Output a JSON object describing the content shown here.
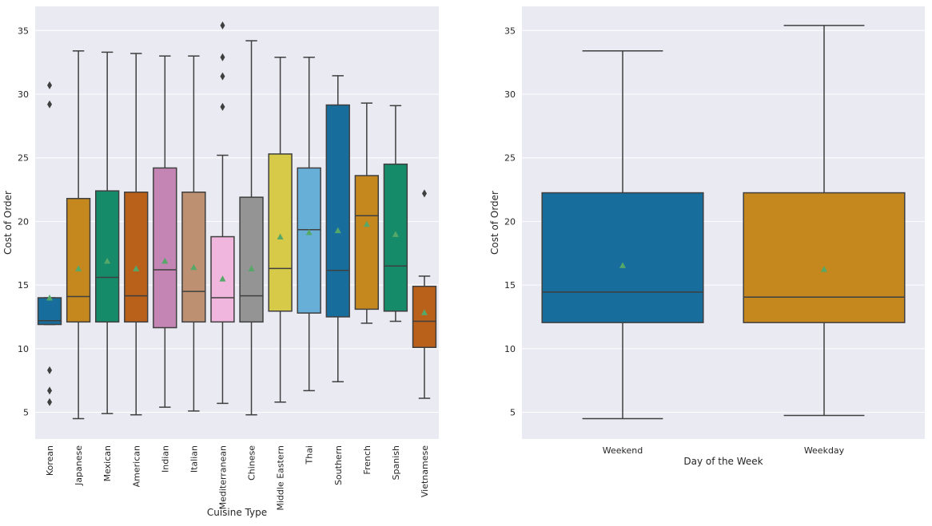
{
  "chart_data": [
    {
      "type": "box",
      "xlabel": "Cuisine Type",
      "ylabel": "Cost of Order",
      "ylim": [
        2.9,
        36.9
      ],
      "yticks": [
        5,
        10,
        15,
        20,
        25,
        30,
        35
      ],
      "grid": true,
      "show_means": true,
      "categories": [
        "Korean",
        "Japanese",
        "Mexican",
        "American",
        "Indian",
        "Italian",
        "Mediterranean",
        "Chinese",
        "Middle Eastern",
        "Thai",
        "Southern",
        "French",
        "Spanish",
        "Vietnamese"
      ],
      "colors": [
        "#176d9c",
        "#c4881f",
        "#158b6a",
        "#b9611b",
        "#c484b4",
        "#bc9070",
        "#f0b6de",
        "#949494",
        "#d6ca48",
        "#68afd8",
        "#176d9c",
        "#c4881f",
        "#158b6a",
        "#b9611b"
      ],
      "boxes": [
        {
          "whislo": 11.9,
          "q1": 11.9,
          "median": 12.2,
          "q3": 14.0,
          "whishi": 14.0,
          "mean": 14.0,
          "fliers": [
            30.7,
            29.2,
            8.3,
            6.7,
            5.8
          ]
        },
        {
          "whislo": 4.5,
          "q1": 12.1,
          "median": 14.1,
          "q3": 21.8,
          "whishi": 33.4,
          "mean": 16.3,
          "fliers": []
        },
        {
          "whislo": 4.9,
          "q1": 12.1,
          "median": 15.6,
          "q3": 22.4,
          "whishi": 33.3,
          "mean": 16.9,
          "fliers": []
        },
        {
          "whislo": 4.8,
          "q1": 12.1,
          "median": 14.15,
          "q3": 22.3,
          "whishi": 33.2,
          "mean": 16.3,
          "fliers": []
        },
        {
          "whislo": 5.4,
          "q1": 11.65,
          "median": 16.2,
          "q3": 24.2,
          "whishi": 33.0,
          "mean": 16.9,
          "fliers": []
        },
        {
          "whislo": 5.1,
          "q1": 12.1,
          "median": 14.5,
          "q3": 22.3,
          "whishi": 33.0,
          "mean": 16.4,
          "fliers": []
        },
        {
          "whislo": 5.7,
          "q1": 12.1,
          "median": 14.0,
          "q3": 18.8,
          "whishi": 25.2,
          "mean": 15.5,
          "fliers": [
            35.4,
            32.9,
            31.4,
            29.0
          ]
        },
        {
          "whislo": 4.8,
          "q1": 12.1,
          "median": 14.15,
          "q3": 21.9,
          "whishi": 34.2,
          "mean": 16.3,
          "fliers": []
        },
        {
          "whislo": 5.8,
          "q1": 12.95,
          "median": 16.3,
          "q3": 25.3,
          "whishi": 32.9,
          "mean": 18.8,
          "fliers": []
        },
        {
          "whislo": 6.7,
          "q1": 12.8,
          "median": 19.35,
          "q3": 24.2,
          "whishi": 32.9,
          "mean": 19.15,
          "fliers": []
        },
        {
          "whislo": 7.4,
          "q1": 12.5,
          "median": 16.15,
          "q3": 29.15,
          "whishi": 31.45,
          "mean": 19.3,
          "fliers": []
        },
        {
          "whislo": 12.0,
          "q1": 13.1,
          "median": 20.45,
          "q3": 23.6,
          "whishi": 29.3,
          "mean": 19.8,
          "fliers": []
        },
        {
          "whislo": 12.15,
          "q1": 12.95,
          "median": 16.5,
          "q3": 24.5,
          "whishi": 29.1,
          "mean": 19.0,
          "fliers": []
        },
        {
          "whislo": 6.1,
          "q1": 10.1,
          "median": 12.15,
          "q3": 14.9,
          "whishi": 15.7,
          "mean": 12.85,
          "fliers": [
            22.2
          ]
        }
      ]
    },
    {
      "type": "box",
      "xlabel": "Day of the Week",
      "ylabel": "Cost of Order",
      "ylim": [
        2.9,
        36.9
      ],
      "yticks": [
        5,
        10,
        15,
        20,
        25,
        30,
        35
      ],
      "grid": true,
      "show_means": true,
      "categories": [
        "Weekend",
        "Weekday"
      ],
      "colors": [
        "#176d9c",
        "#c4881f"
      ],
      "boxes": [
        {
          "whislo": 4.5,
          "q1": 12.05,
          "median": 14.45,
          "q3": 22.25,
          "whishi": 33.4,
          "mean": 16.55,
          "fliers": []
        },
        {
          "whislo": 4.75,
          "q1": 12.05,
          "median": 14.05,
          "q3": 22.25,
          "whishi": 35.4,
          "mean": 16.25,
          "fliers": []
        }
      ]
    }
  ]
}
